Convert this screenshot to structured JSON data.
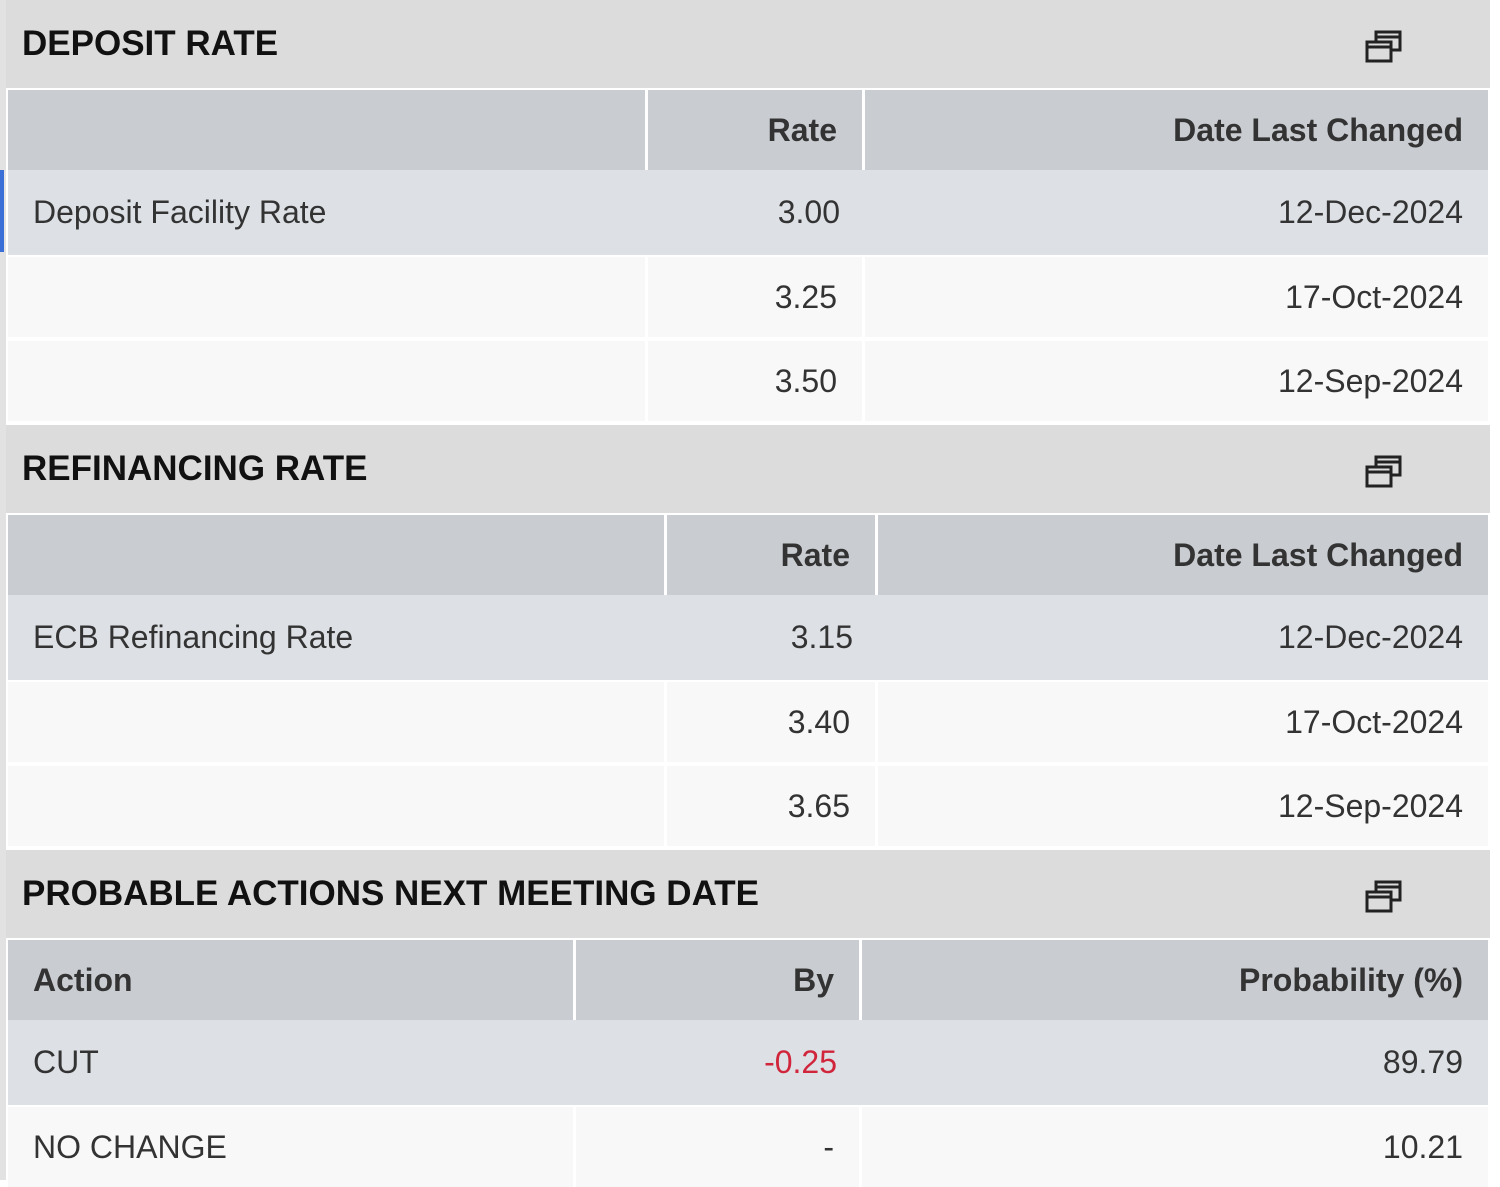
{
  "sections": [
    {
      "title": "DEPOSIT RATE",
      "columns": [
        null,
        "Rate",
        "Date Last Changed"
      ],
      "rows": [
        [
          "Deposit Facility Rate",
          "3.00",
          "12-Dec-2024"
        ],
        [
          null,
          "3.25",
          "17-Oct-2024"
        ],
        [
          null,
          "3.50",
          "12-Sep-2024"
        ]
      ]
    },
    {
      "title": "REFINANCING RATE",
      "columns": [
        null,
        "Rate",
        "Date Last Changed"
      ],
      "rows": [
        [
          "ECB Refinancing Rate",
          "3.15",
          "12-Dec-2024"
        ],
        [
          null,
          "3.40",
          "17-Oct-2024"
        ],
        [
          null,
          "3.65",
          "12-Sep-2024"
        ]
      ]
    },
    {
      "title": "PROBABLE ACTIONS NEXT MEETING DATE",
      "columns": [
        "Action",
        "By",
        "Probability (%)"
      ],
      "rows": [
        [
          "CUT",
          "-0.25",
          "89.79"
        ],
        [
          "NO CHANGE",
          "-",
          "10.21"
        ]
      ]
    }
  ]
}
